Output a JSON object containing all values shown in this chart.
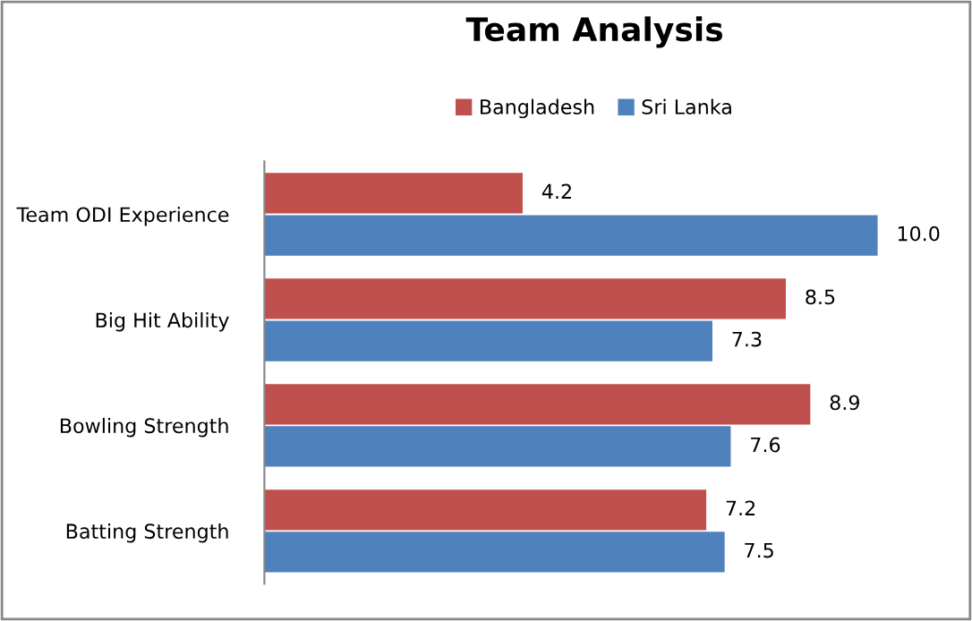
{
  "chart_data": {
    "type": "bar",
    "orientation": "horizontal",
    "title": "Team Analysis",
    "categories": [
      "Team ODI Experience",
      "Big Hit Ability",
      "Bowling Strength",
      "Batting Strength"
    ],
    "series": [
      {
        "name": "Bangladesh",
        "color": "#c0504d",
        "values": [
          4.2,
          8.5,
          8.9,
          7.2
        ],
        "value_labels": [
          "4.2",
          "8.5",
          "8.9",
          "7.2"
        ]
      },
      {
        "name": "Sri Lanka",
        "color": "#4f81bd",
        "values": [
          10.0,
          7.3,
          7.6,
          7.5
        ],
        "value_labels": [
          "10.0",
          "7.3",
          "7.6",
          "7.5"
        ]
      }
    ],
    "legend": "top",
    "grid": false
  }
}
